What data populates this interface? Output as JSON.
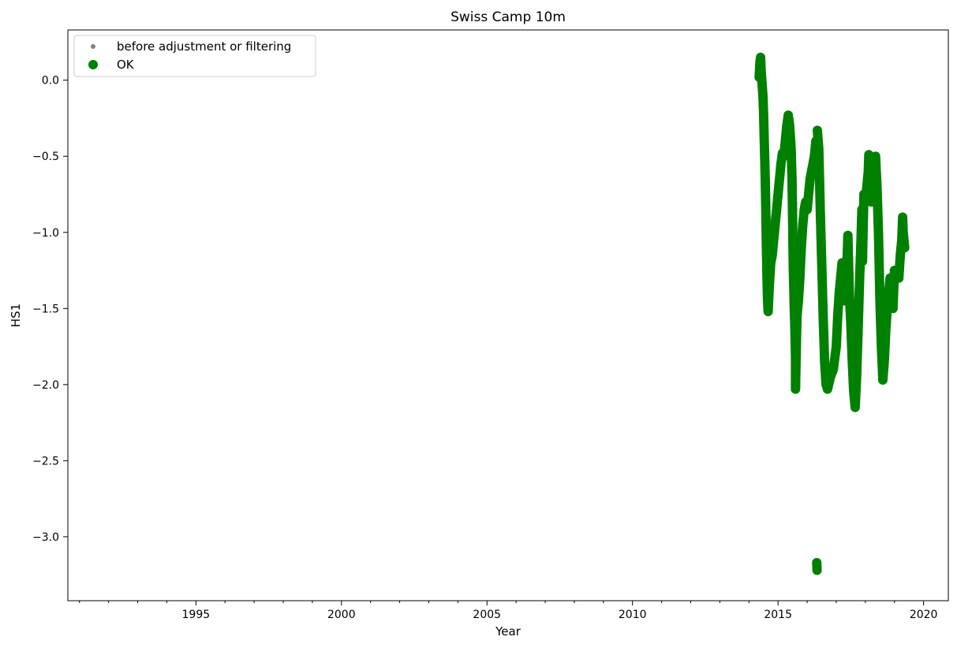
{
  "chart_data": {
    "type": "scatter",
    "title": "Swiss Camp 10m",
    "xlabel": "Year",
    "ylabel": "HS1",
    "xlim": [
      1990.6,
      2020.85
    ],
    "ylim": [
      -3.42,
      0.33
    ],
    "x_major_ticks": [
      1995,
      2000,
      2005,
      2010,
      2015,
      2020
    ],
    "x_tick_labels": [
      "1995",
      "2000",
      "2005",
      "2010",
      "2015",
      "2020"
    ],
    "y_major_ticks": [
      0.0,
      -0.5,
      -1.0,
      -1.5,
      -2.0,
      -2.5,
      -3.0
    ],
    "y_tick_labels": [
      "0.0",
      "−0.5",
      "−1.0",
      "−1.5",
      "−2.0",
      "−2.5",
      "−3.0"
    ],
    "grid": false,
    "legend_position": "top-left",
    "series": [
      {
        "name": "before adjustment or filtering",
        "color": "#808080",
        "marker": "small-dot",
        "points": []
      },
      {
        "name": "OK",
        "color": "#008000",
        "marker": "large-dot",
        "points": [
          [
            2014.35,
            0.02
          ],
          [
            2014.38,
            0.12
          ],
          [
            2014.4,
            0.15
          ],
          [
            2014.42,
            0.06
          ],
          [
            2014.45,
            -0.02
          ],
          [
            2014.48,
            -0.1
          ],
          [
            2014.5,
            -0.2
          ],
          [
            2014.52,
            -0.35
          ],
          [
            2014.54,
            -0.5
          ],
          [
            2014.56,
            -0.65
          ],
          [
            2014.58,
            -0.85
          ],
          [
            2014.6,
            -1.1
          ],
          [
            2014.62,
            -1.3
          ],
          [
            2014.64,
            -1.45
          ],
          [
            2014.66,
            -1.52
          ],
          [
            2014.7,
            -1.35
          ],
          [
            2014.75,
            -1.2
          ],
          [
            2014.8,
            -1.15
          ],
          [
            2014.85,
            -1.05
          ],
          [
            2014.9,
            -0.95
          ],
          [
            2014.95,
            -0.85
          ],
          [
            2015.0,
            -0.75
          ],
          [
            2015.05,
            -0.65
          ],
          [
            2015.1,
            -0.55
          ],
          [
            2015.15,
            -0.48
          ],
          [
            2015.2,
            -0.5
          ],
          [
            2015.25,
            -0.4
          ],
          [
            2015.3,
            -0.3
          ],
          [
            2015.35,
            -0.23
          ],
          [
            2015.4,
            -0.3
          ],
          [
            2015.45,
            -0.45
          ],
          [
            2015.48,
            -0.65
          ],
          [
            2015.5,
            -0.9
          ],
          [
            2015.52,
            -1.2
          ],
          [
            2015.55,
            -1.45
          ],
          [
            2015.58,
            -1.65
          ],
          [
            2015.6,
            -1.82
          ],
          [
            2015.6,
            -2.03
          ],
          [
            2015.65,
            -1.55
          ],
          [
            2015.7,
            -1.45
          ],
          [
            2015.75,
            -1.3
          ],
          [
            2015.8,
            -1.1
          ],
          [
            2015.85,
            -0.95
          ],
          [
            2015.9,
            -0.85
          ],
          [
            2015.95,
            -0.8
          ],
          [
            2016.0,
            -0.85
          ],
          [
            2016.05,
            -0.75
          ],
          [
            2016.1,
            -0.65
          ],
          [
            2016.15,
            -0.6
          ],
          [
            2016.2,
            -0.55
          ],
          [
            2016.25,
            -0.5
          ],
          [
            2016.3,
            -0.4
          ],
          [
            2016.35,
            -0.33
          ],
          [
            2016.33,
            -3.17
          ],
          [
            2016.34,
            -3.22
          ],
          [
            2016.4,
            -0.45
          ],
          [
            2016.45,
            -0.85
          ],
          [
            2016.5,
            -1.2
          ],
          [
            2016.55,
            -1.55
          ],
          [
            2016.6,
            -1.85
          ],
          [
            2016.65,
            -2.0
          ],
          [
            2016.7,
            -2.03
          ],
          [
            2016.8,
            -1.95
          ],
          [
            2016.9,
            -1.9
          ],
          [
            2017.0,
            -1.75
          ],
          [
            2017.05,
            -1.55
          ],
          [
            2017.1,
            -1.4
          ],
          [
            2017.15,
            -1.3
          ],
          [
            2017.2,
            -1.2
          ],
          [
            2017.25,
            -1.35
          ],
          [
            2017.3,
            -1.45
          ],
          [
            2017.35,
            -1.3
          ],
          [
            2017.4,
            -1.02
          ],
          [
            2017.45,
            -1.4
          ],
          [
            2017.5,
            -1.6
          ],
          [
            2017.55,
            -1.85
          ],
          [
            2017.6,
            -2.05
          ],
          [
            2017.65,
            -2.15
          ],
          [
            2017.7,
            -1.95
          ],
          [
            2017.75,
            -1.65
          ],
          [
            2017.8,
            -1.32
          ],
          [
            2017.85,
            -1.05
          ],
          [
            2017.88,
            -0.85
          ],
          [
            2017.9,
            -1.19
          ],
          [
            2017.95,
            -0.75
          ],
          [
            2018.0,
            -0.8
          ],
          [
            2018.05,
            -0.7
          ],
          [
            2018.1,
            -0.6
          ],
          [
            2018.12,
            -0.49
          ],
          [
            2018.15,
            -0.68
          ],
          [
            2018.2,
            -0.8
          ],
          [
            2018.25,
            -0.65
          ],
          [
            2018.3,
            -0.55
          ],
          [
            2018.35,
            -0.5
          ],
          [
            2018.4,
            -0.7
          ],
          [
            2018.45,
            -1.0
          ],
          [
            2018.5,
            -1.45
          ],
          [
            2018.55,
            -1.75
          ],
          [
            2018.6,
            -1.97
          ],
          [
            2018.65,
            -1.85
          ],
          [
            2018.7,
            -1.65
          ],
          [
            2018.75,
            -1.5
          ],
          [
            2018.8,
            -1.4
          ],
          [
            2018.85,
            -1.3
          ],
          [
            2018.9,
            -1.4
          ],
          [
            2018.95,
            -1.5
          ],
          [
            2019.0,
            -1.25
          ],
          [
            2019.05,
            -1.3
          ],
          [
            2019.1,
            -1.25
          ],
          [
            2019.15,
            -1.3
          ],
          [
            2019.2,
            -1.15
          ],
          [
            2019.25,
            -1.05
          ],
          [
            2019.28,
            -0.9
          ],
          [
            2019.3,
            -1.0
          ],
          [
            2019.35,
            -1.1
          ]
        ]
      }
    ]
  }
}
